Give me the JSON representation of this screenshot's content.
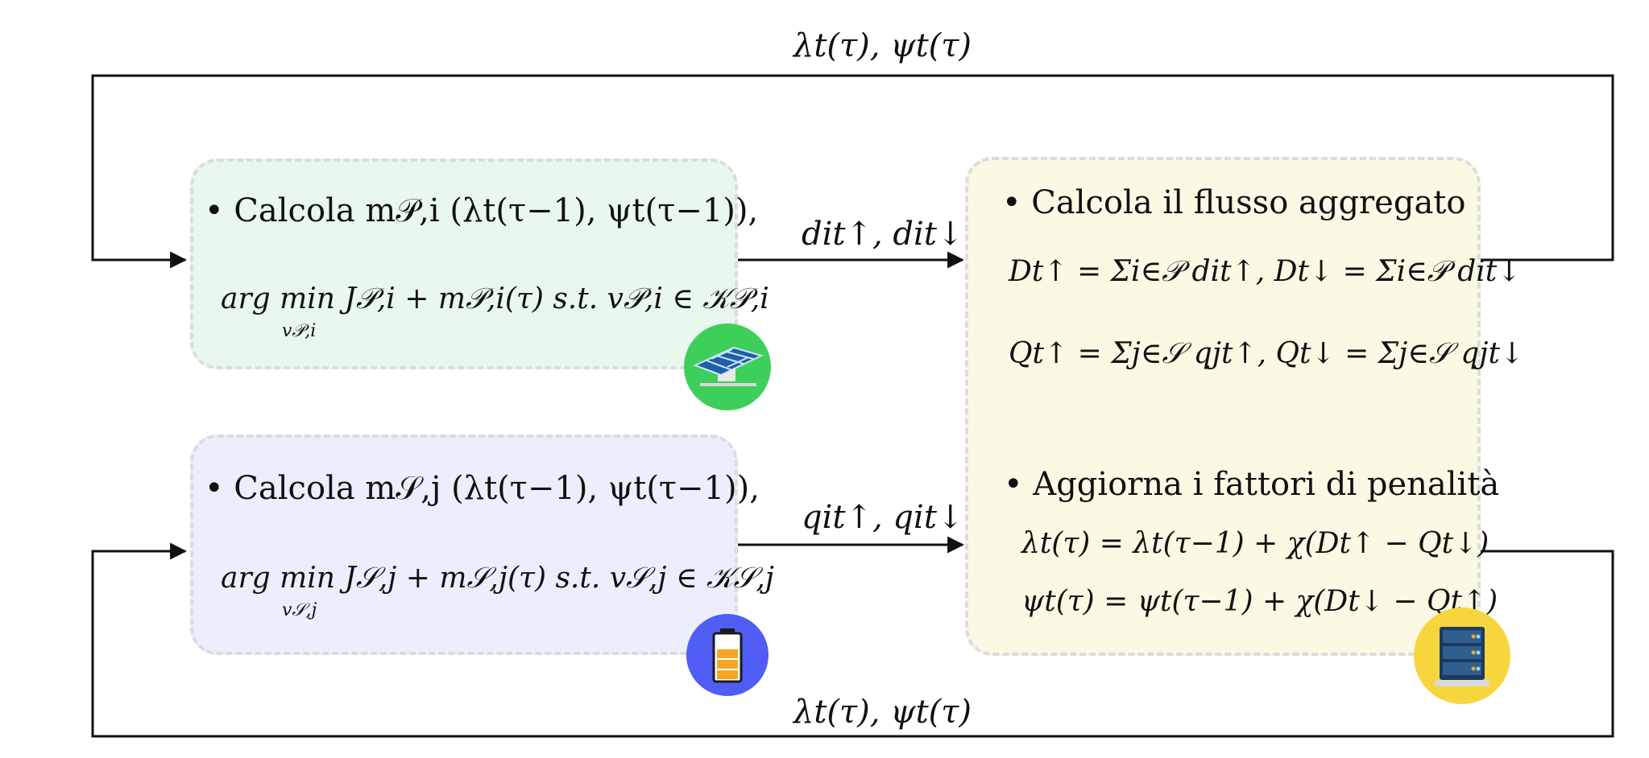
{
  "feedback": {
    "top_label": "λt(τ), ψt(τ)",
    "bottom_label": "λt(τ), ψt(τ)"
  },
  "producer_block": {
    "line1": "• Calcola   m𝒫,i (λt(τ−1), ψt(τ−1)),",
    "line2": "arg min J𝒫,i + m𝒫,i(τ) s.t. v𝒫,i ∈ 𝒦𝒫,i",
    "line2_sub": "v𝒫,i",
    "output_label": "dit↑, dit↓",
    "icon": "solar-panel-icon",
    "badge_color": "#3ecf5a",
    "fill_color": "#e9f8ec"
  },
  "storage_block": {
    "line1": "• Calcola   m𝒮,j (λt(τ−1), ψt(τ−1)),",
    "line2": "arg min J𝒮,j + m𝒮,j(τ) s.t. v𝒮,j ∈ 𝒦𝒮,j",
    "line2_sub": "v𝒮,j",
    "output_label": "qit↑, qit↓",
    "icon": "battery-icon",
    "badge_color": "#4f5df5",
    "fill_color": "#eceefd"
  },
  "aggregator_block": {
    "heading1": "• Calcola il flusso aggregato",
    "eq_D": "Dt↑ = Σi∈𝒫 dit↑,    Dt↓ = Σi∈𝒫 dit↓",
    "eq_Q": "Qt↑ = Σj∈𝒮 qjt↑,    Qt↓ = Σj∈𝒮 qjt↓",
    "heading2": "• Aggiorna i fattori di penalità",
    "update_lambda": "λt(τ) = λt(τ−1) + χ(Dt↑ − Qt↓)",
    "update_psi": "ψt(τ) = ψt(τ−1) + χ(Dt↓ − Qt↑)",
    "icon": "server-icon",
    "badge_color": "#f7d63d",
    "fill_color": "#fbf8e4"
  }
}
